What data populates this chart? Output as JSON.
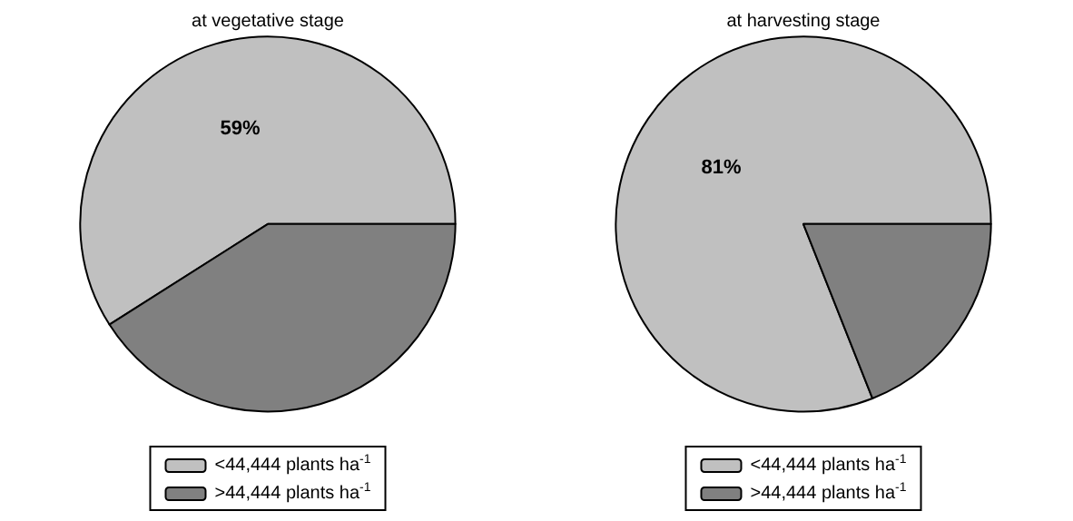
{
  "chart_data": [
    {
      "type": "pie",
      "title": "at vegetative stage",
      "categories": [
        "<44,444 plants ha$^{-1}$",
        ">44,444 plants ha$^{-1}$"
      ],
      "values": [
        59,
        41
      ],
      "colors": [
        "#c0c0c0",
        "#808080"
      ],
      "value_labels": [
        "59%",
        null
      ],
      "legend": "bottom"
    },
    {
      "type": "pie",
      "title": "at harvesting stage",
      "categories": [
        "<44,444 plants ha$^{-1}$",
        ">44,444 plants ha$^{-1}$"
      ],
      "values": [
        81,
        19
      ],
      "colors": [
        "#c0c0c0",
        "#808080"
      ],
      "value_labels": [
        "81%",
        null
      ],
      "legend": "bottom"
    }
  ]
}
